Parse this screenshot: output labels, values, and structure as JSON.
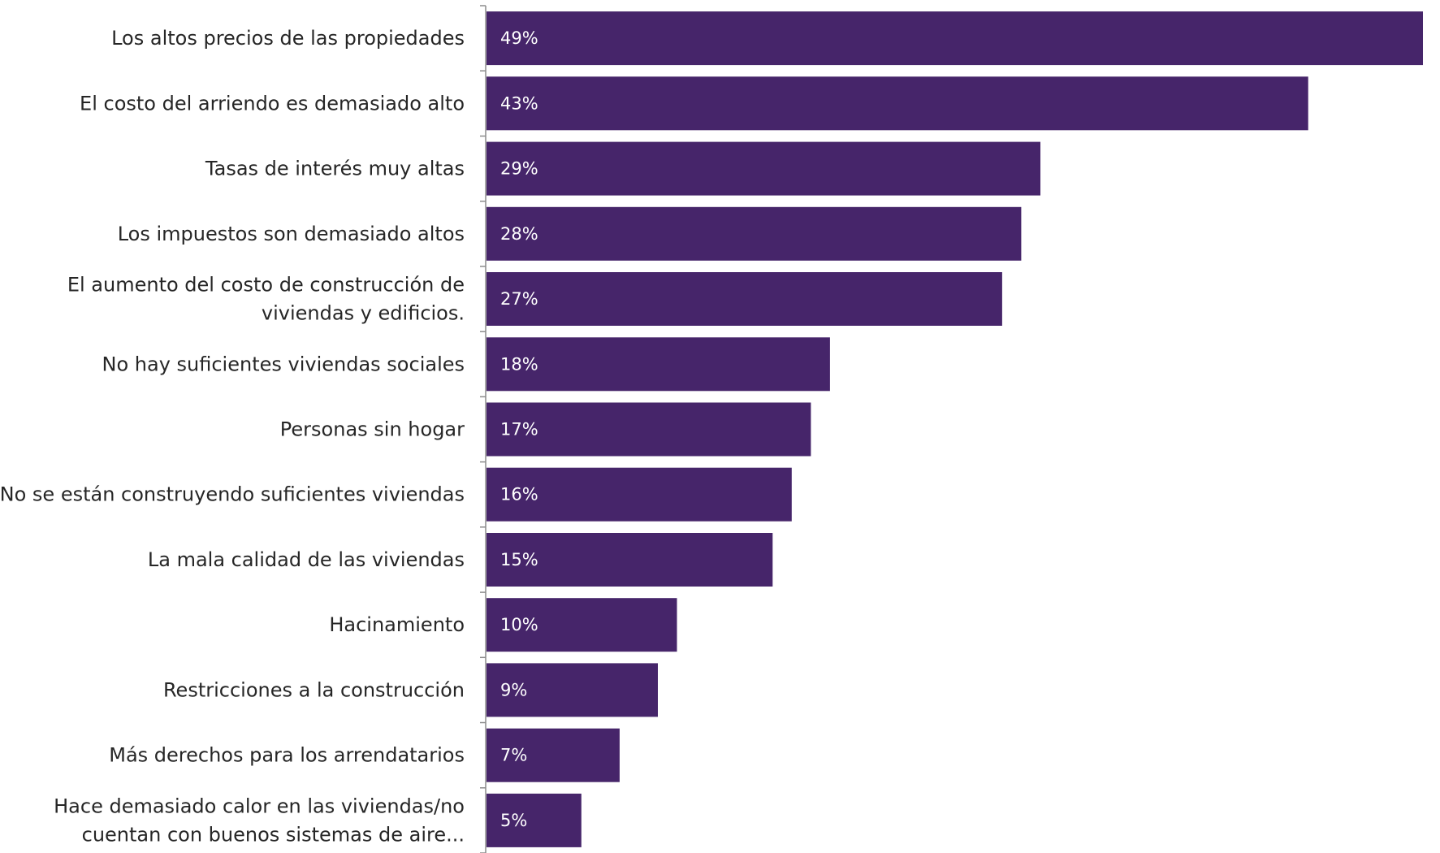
{
  "chart_data": {
    "type": "bar",
    "orientation": "horizontal",
    "categories": [
      "Los altos precios de las propiedades",
      "El costo del arriendo es demasiado alto",
      "Tasas de interés muy altas",
      "Los impuestos son demasiado altos",
      "El aumento del costo de construcción de viviendas y edificios.",
      "No hay suficientes viviendas sociales",
      "Personas sin hogar",
      "No se están construyendo suficientes viviendas",
      "La mala calidad de las viviendas",
      "Hacinamiento",
      "Restricciones a la construcción",
      "Más derechos para los arrendatarios",
      "Hace demasiado calor en las viviendas/no cuentan con buenos sistemas de aire..."
    ],
    "category_lines": [
      [
        "Los altos precios de las propiedades"
      ],
      [
        "El costo del arriendo es demasiado alto"
      ],
      [
        "Tasas de interés muy altas"
      ],
      [
        "Los impuestos son demasiado altos"
      ],
      [
        "El aumento del costo de construcción de",
        "viviendas y edificios."
      ],
      [
        "No hay suficientes viviendas sociales"
      ],
      [
        "Personas sin hogar"
      ],
      [
        "No se están construyendo suficientes viviendas"
      ],
      [
        "La mala calidad de las viviendas"
      ],
      [
        "Hacinamiento"
      ],
      [
        "Restricciones a la construcción"
      ],
      [
        "Más derechos para los arrendatarios"
      ],
      [
        "Hace demasiado calor en las viviendas/no",
        "cuentan con buenos sistemas de aire..."
      ]
    ],
    "values": [
      49,
      43,
      29,
      28,
      27,
      18,
      17,
      16,
      15,
      10,
      9,
      7,
      5
    ],
    "value_labels": [
      "49%",
      "43%",
      "29%",
      "28%",
      "27%",
      "18%",
      "17%",
      "16%",
      "15%",
      "10%",
      "9%",
      "7%",
      "5%"
    ],
    "xlim": [
      0,
      49
    ],
    "bar_color": "#46256a",
    "axis_color": "#8c8c8c",
    "grid": false,
    "legend": false
  }
}
